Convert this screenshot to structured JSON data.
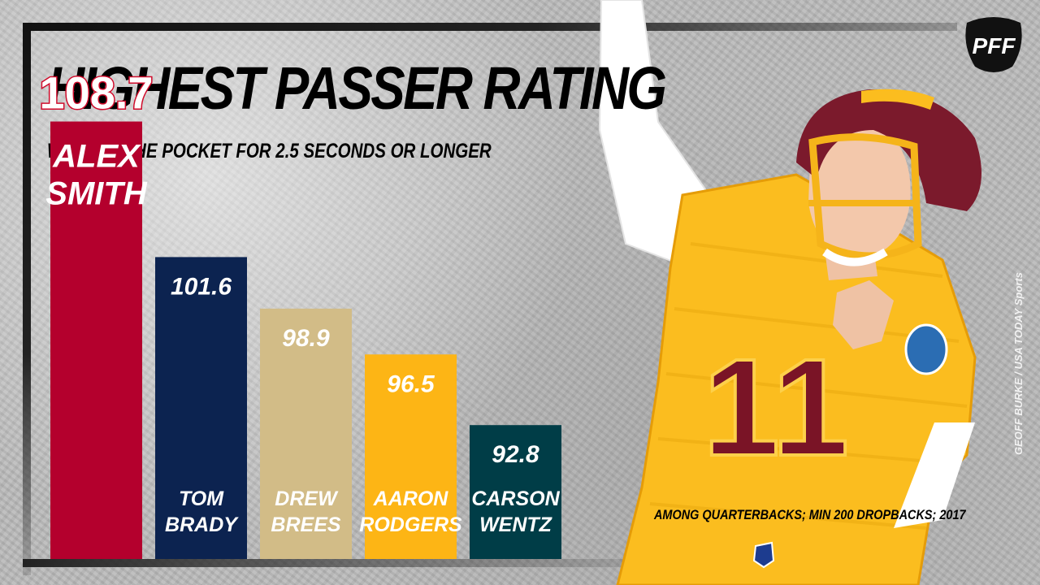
{
  "header": {
    "title": "HIGHEST PASSER RATING",
    "subtitle": "WHEN IN THE POCKET FOR 2.5 SECONDS OR LONGER"
  },
  "logo": {
    "text": "PFF",
    "icon": "pff-logo-icon"
  },
  "photo_credit": "GEOFF BURKE / USA TODAY Sports",
  "footnote": "AMONG QUARTERBACKS; MIN 200 DROPBACKS; 2017",
  "player_photo": {
    "jersey_number": "11"
  },
  "chart_data": {
    "type": "bar",
    "title": "HIGHEST PASSER RATING",
    "subtitle": "WHEN IN THE POCKET FOR 2.5 SECONDS OR LONGER",
    "xlabel": "",
    "ylabel": "",
    "categories": [
      "ALEX SMITH",
      "TOM BRADY",
      "DREW BREES",
      "AARON RODGERS",
      "CARSON WENTZ"
    ],
    "name_lines": [
      [
        "ALEX",
        "SMITH"
      ],
      [
        "TOM",
        "BRADY"
      ],
      [
        "DREW",
        "BREES"
      ],
      [
        "AARON",
        "RODGERS"
      ],
      [
        "CARSON",
        "WENTZ"
      ]
    ],
    "values": [
      108.7,
      101.6,
      98.9,
      96.5,
      92.8
    ],
    "value_labels": [
      "108.7",
      "101.6",
      "98.9",
      "96.5",
      "92.8"
    ],
    "colors": [
      "#b4002d",
      "#0c2350",
      "#d2bc87",
      "#fdb515",
      "#003d47"
    ],
    "highlight_index": 0,
    "grid": false,
    "legend": "none"
  }
}
